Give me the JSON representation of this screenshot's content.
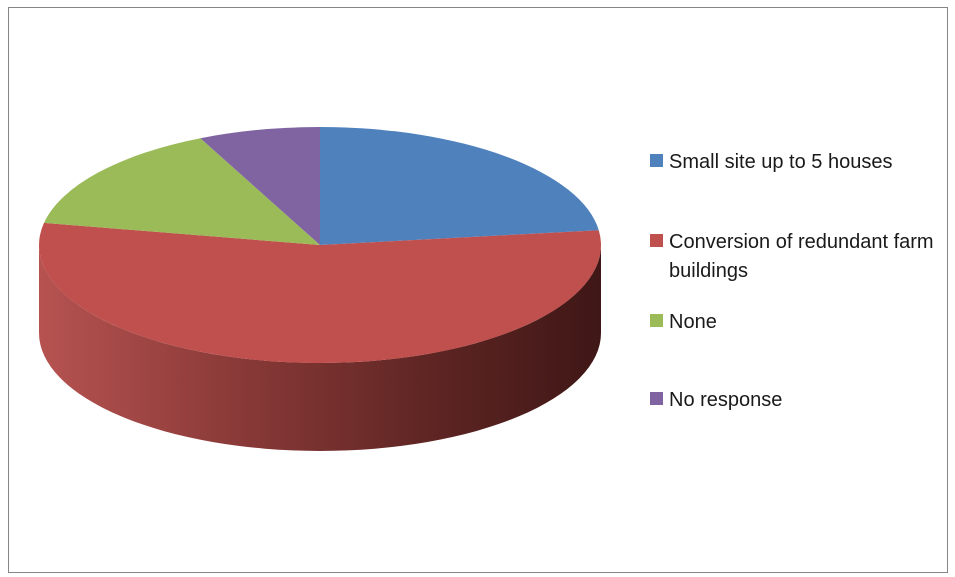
{
  "chart_data": {
    "type": "pie",
    "title": "",
    "categories": [
      "Small site up to 5 houses",
      "Conversion of redundant farm buildings",
      "None",
      "No response"
    ],
    "values": [
      23,
      55,
      15,
      7
    ],
    "colors": [
      "#4F81BD",
      "#C0504D",
      "#9BBB59",
      "#8064A2"
    ],
    "three_d": true,
    "legend_position": "right"
  },
  "legend": {
    "items": [
      {
        "label": "Small site up to 5 houses",
        "color": "#4F81BD"
      },
      {
        "label": "Conversion of redundant farm buildings",
        "color": "#C0504D"
      },
      {
        "label": "None",
        "color": "#9BBB59"
      },
      {
        "label": "No response",
        "color": "#8064A2"
      }
    ]
  }
}
